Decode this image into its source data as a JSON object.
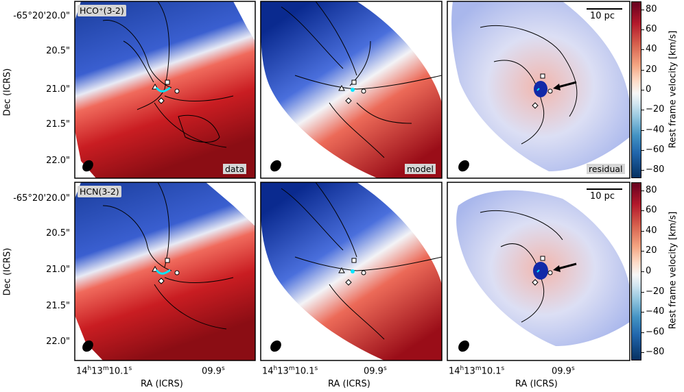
{
  "figure": {
    "ylabel": "Dec (ICRS)",
    "xlabel": "RA (ICRS)",
    "yticks": [
      "-65°20'20.0\"",
      "20.5\"",
      "21.0\"",
      "21.5\"",
      "22.0\""
    ],
    "xticks": {
      "left": {
        "h": "14",
        "m": "13",
        "s": "10.1"
      },
      "right": {
        "s": "09.9"
      }
    },
    "rows": [
      {
        "line_label": "HCO⁺(3-2)"
      },
      {
        "line_label": "HCN(3-2)"
      }
    ],
    "panel_labels": {
      "data": "data",
      "model": "model",
      "residual": "residual"
    },
    "scale_bar_label": "10 pc",
    "colorbar": {
      "label": "Rest frame velocity [km/s]",
      "ticks": [
        "80",
        "60",
        "40",
        "20",
        "0",
        "−20",
        "−40",
        "−60",
        "−80"
      ],
      "colormap": "RdBu_r",
      "range": [
        -88,
        88
      ]
    },
    "colors": {
      "red": "#b2182b",
      "blue": "#2166ac",
      "marker_cyan": "#00e5ff"
    }
  }
}
